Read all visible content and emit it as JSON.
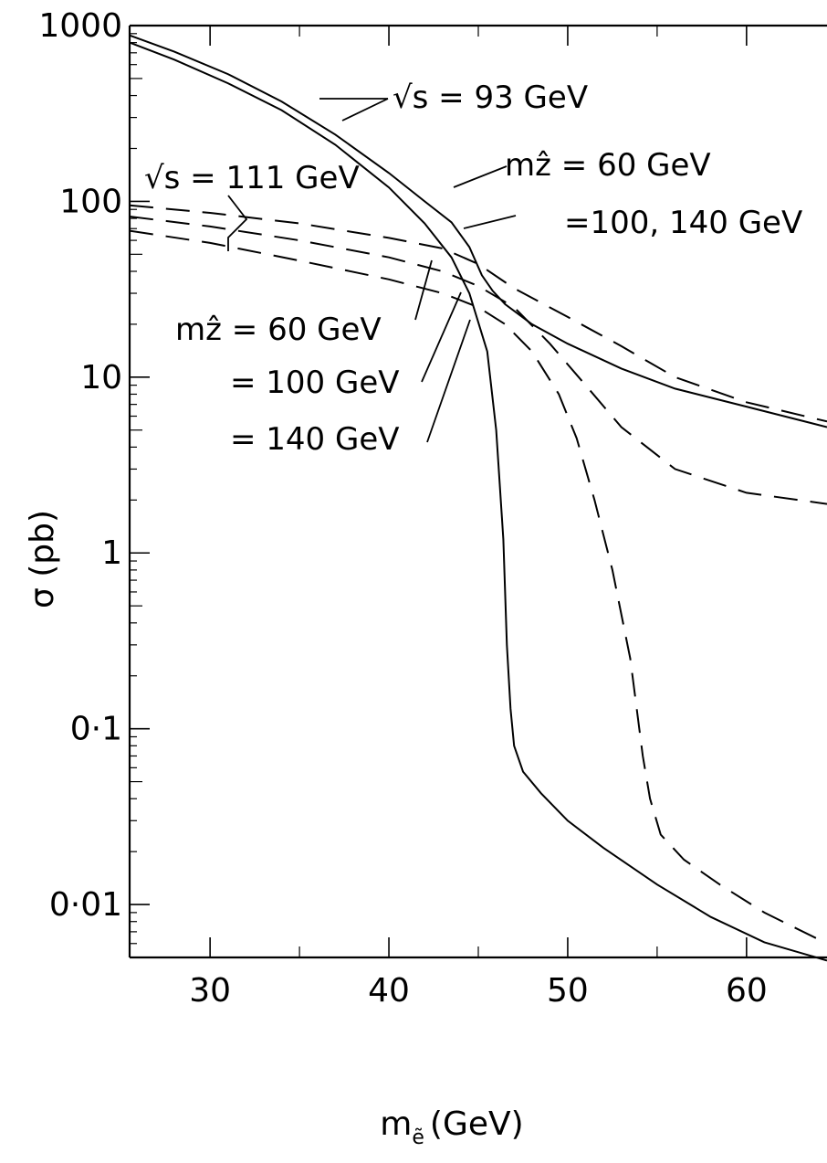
{
  "chart_data": {
    "type": "line",
    "title": "",
    "xlabel": "m",
    "xlabel_sub": "ẽ",
    "xlabel_unit": "(GeV)",
    "ylabel": "σ (pb)",
    "xlim": [
      25.5,
      64.5
    ],
    "ylim": [
      0.005,
      1000
    ],
    "yscale": "log",
    "grid": false,
    "x_ticks": [
      30,
      40,
      50,
      60
    ],
    "x_tick_labels": [
      "30",
      "40",
      "50",
      "60"
    ],
    "y_ticks": [
      1000,
      100,
      10,
      1,
      0.1,
      0.01
    ],
    "y_tick_labels": [
      "1000",
      "100",
      "10",
      "1",
      "0·1",
      "0·01"
    ],
    "series": [
      {
        "style": "solid",
        "x": [
          25.5,
          28,
          31,
          34,
          37,
          40,
          42,
          43.5,
          44.5,
          45.5,
          46,
          46.4,
          46.6,
          46.8,
          47,
          47.5,
          48.5,
          50,
          52,
          55,
          58,
          61,
          64.5
        ],
        "y": [
          800,
          640,
          470,
          330,
          210,
          120,
          75,
          48,
          30,
          14,
          5,
          1.2,
          0.3,
          0.13,
          0.08,
          0.057,
          0.043,
          0.03,
          0.021,
          0.013,
          0.0085,
          0.0061,
          0.0048
        ]
      },
      {
        "style": "solid",
        "x": [
          25.5,
          28,
          31,
          34,
          37,
          40,
          42,
          43.5,
          44.5,
          45.2,
          45.8,
          46.5,
          48,
          50,
          53,
          56,
          60,
          64.5
        ],
        "y": [
          880,
          710,
          530,
          370,
          240,
          145,
          100,
          76,
          55,
          38,
          31,
          26,
          20,
          15.5,
          11.2,
          8.6,
          6.8,
          5.2
        ]
      },
      {
        "style": "dashed",
        "x": [
          25.5,
          30,
          35,
          40,
          43,
          45,
          47,
          50,
          53,
          56,
          60,
          64.5
        ],
        "y": [
          95,
          86,
          75,
          62,
          54,
          44,
          32,
          22,
          15,
          10,
          7.2,
          5.6
        ]
      },
      {
        "style": "dashed",
        "x": [
          25.5,
          30,
          35,
          40,
          43,
          45,
          47,
          49,
          51,
          53,
          56,
          60,
          64.5
        ],
        "y": [
          82,
          72,
          60,
          48,
          40,
          33,
          25,
          15.5,
          9,
          5.2,
          3,
          2.2,
          1.9
        ]
      },
      {
        "style": "dashed",
        "x": [
          25.5,
          30,
          35,
          40,
          43,
          45,
          46.5,
          48,
          49.5,
          50.5,
          51.5,
          52.5,
          53.5,
          54.2,
          54.6,
          55.2,
          56.5,
          58.5,
          61,
          64.5
        ],
        "y": [
          68,
          58,
          46,
          36,
          30,
          25,
          20,
          14,
          8,
          4.5,
          2,
          0.8,
          0.25,
          0.07,
          0.04,
          0.025,
          0.018,
          0.013,
          0.009,
          0.006
        ]
      }
    ],
    "annotations": [
      "√s = 93 GeV",
      "mẑ = 60 GeV",
      "=100, 140 GeV",
      "√s = 111 GeV",
      "mẑ =  60 GeV",
      "=  100 GeV",
      "=  140 GeV"
    ]
  }
}
